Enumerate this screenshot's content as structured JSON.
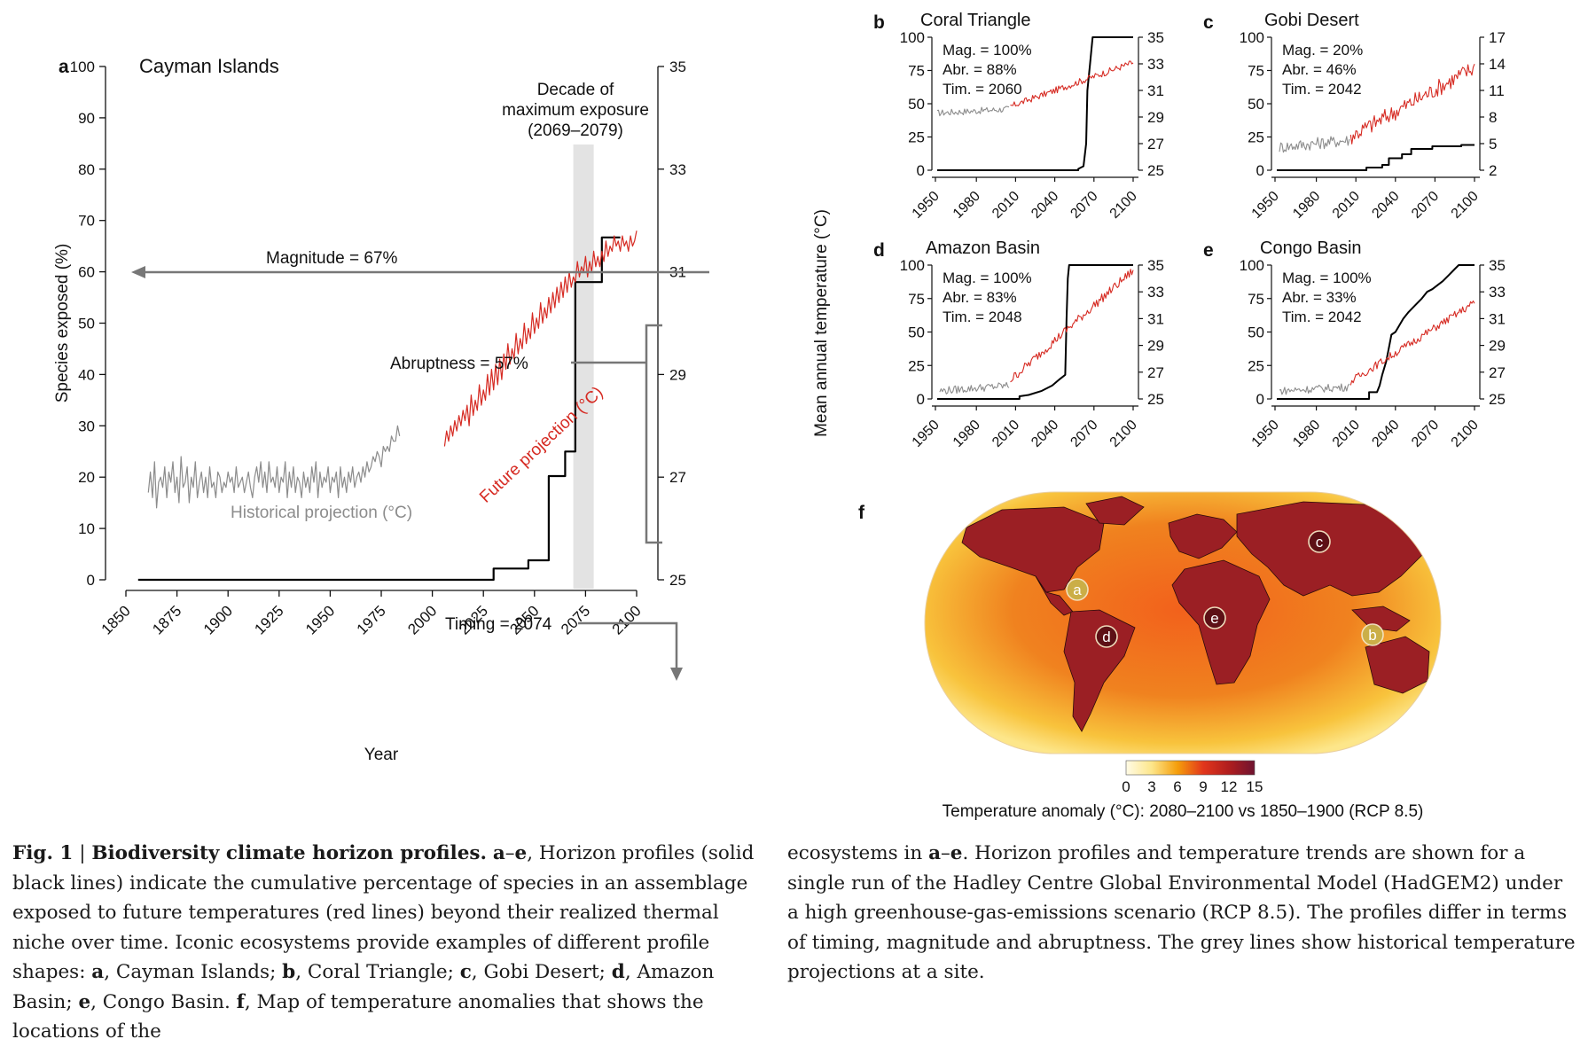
{
  "chart_data": [
    {
      "panel": "a",
      "type": "line",
      "title": "Cayman Islands",
      "xlabel": "Year",
      "ylabel_left": "Species exposed (%)",
      "ylabel_right": "Mean annual temperature (°C)",
      "xlim": [
        1850,
        2100
      ],
      "ylim_left": [
        0,
        100
      ],
      "ylim_right": [
        25,
        35
      ],
      "xticks": [
        1850,
        1875,
        1900,
        1925,
        1950,
        1975,
        2000,
        2025,
        2050,
        2075,
        2100
      ],
      "yticks_left": [
        0,
        10,
        20,
        30,
        40,
        50,
        60,
        70,
        80,
        90,
        100
      ],
      "yticks_right": [
        25,
        27,
        29,
        31,
        33,
        35
      ],
      "highlight": {
        "label_lines": [
          "Decade of",
          "maximum exposure",
          "(2069–2079)"
        ],
        "x_range": [
          2069,
          2079
        ]
      },
      "annotations": {
        "magnitude": "Magnitude = 67%",
        "abruptness": "Abruptness = 57%",
        "timing": "Timing = 2074",
        "historical": "Historical projection (°C)",
        "future": "Future projection (°C)"
      },
      "series": [
        {
          "name": "Species exposed (%)",
          "color": "#000000",
          "axis": "left",
          "points": [
            [
              1856,
              0
            ],
            [
              2030,
              0
            ],
            [
              2030,
              2.2
            ],
            [
              2047,
              2.2
            ],
            [
              2047,
              3.8
            ],
            [
              2057,
              3.8
            ],
            [
              2057,
              20.2
            ],
            [
              2065,
              20.2
            ],
            [
              2065,
              25
            ],
            [
              2070,
              25
            ],
            [
              2070,
              58
            ],
            [
              2083,
              58
            ],
            [
              2083,
              66.7
            ],
            [
              2092,
              66.7
            ]
          ]
        },
        {
          "name": "Historical projection (°C)",
          "color": "#8c8c8c",
          "axis": "right",
          "start": 1861,
          "values": [
            26.7,
            27.1,
            26.6,
            27.3,
            26.4,
            26.9,
            27.0,
            26.8,
            27.2,
            26.6,
            27.1,
            26.9,
            27.3,
            26.7,
            27.0,
            26.5,
            27.4,
            26.8,
            26.9,
            27.2,
            26.5,
            27.0,
            26.8,
            27.3,
            26.6,
            26.9,
            27.1,
            26.7,
            27.0,
            26.6,
            27.2,
            26.8,
            26.9,
            26.6,
            27.1,
            27.0,
            26.7,
            26.9,
            26.8,
            27.1,
            26.9,
            27.0,
            26.7,
            27.2,
            26.8,
            26.9,
            27.0,
            26.7,
            26.9,
            27.1,
            26.8,
            26.6,
            27.0,
            27.2,
            26.9,
            27.3,
            26.8,
            27.1,
            26.7,
            27.3,
            26.9,
            27.0,
            26.8,
            27.2,
            26.7,
            27.0,
            26.9,
            27.3,
            26.6,
            27.1,
            26.8,
            27.2,
            26.7,
            27.0,
            26.9,
            26.6,
            27.1,
            26.8,
            27.0,
            26.7,
            27.2,
            26.9,
            27.3,
            26.6,
            27.1,
            26.8,
            27.0,
            26.9,
            27.2,
            26.7,
            27.0,
            26.9,
            27.1,
            26.6,
            27.2,
            26.8,
            27.0,
            26.7,
            27.1,
            26.9,
            27.2,
            26.8,
            27.0,
            27.1,
            26.9,
            27.2,
            27.0,
            27.3,
            27.1,
            27.2,
            27.4,
            27.3,
            27.5,
            27.4,
            27.2,
            27.6,
            27.5,
            27.6,
            27.5,
            27.8,
            27.7,
            27.7,
            28.0,
            27.8
          ]
        },
        {
          "name": "Future projection (°C)",
          "color": "#d62b23",
          "axis": "right",
          "start": 2006,
          "values": [
            27.6,
            27.9,
            27.7,
            28.0,
            27.8,
            28.1,
            27.9,
            28.2,
            28.0,
            28.3,
            28.1,
            28.4,
            28.0,
            28.6,
            28.2,
            28.5,
            28.3,
            28.8,
            28.4,
            28.7,
            28.5,
            29.0,
            28.6,
            29.1,
            28.7,
            29.2,
            28.8,
            29.3,
            28.9,
            29.4,
            29.1,
            29.6,
            29.2,
            29.5,
            29.3,
            29.8,
            29.4,
            29.7,
            29.5,
            30.0,
            29.6,
            29.9,
            29.7,
            30.2,
            29.8,
            30.1,
            29.9,
            30.4,
            30.0,
            30.3,
            30.1,
            30.5,
            30.2,
            30.6,
            30.3,
            30.7,
            30.4,
            30.8,
            30.5,
            30.9,
            30.6,
            31.0,
            30.7,
            30.9,
            30.8,
            31.2,
            30.9,
            31.1,
            31.0,
            31.3,
            30.9,
            31.2,
            31.0,
            31.4,
            31.1,
            31.3,
            31.1,
            31.4,
            31.2,
            31.6,
            31.3,
            31.5,
            31.4,
            31.7,
            31.5,
            31.6,
            31.4,
            31.7,
            31.5,
            31.6,
            31.4,
            31.7,
            31.5,
            31.6,
            31.8
          ]
        }
      ]
    },
    {
      "panel": "b",
      "type": "line",
      "title": "Coral Triangle",
      "xticks": [
        1950,
        1980,
        2010,
        2040,
        2070,
        2100
      ],
      "yticks_left": [
        0,
        25,
        50,
        75,
        100
      ],
      "yticks_right": [
        25,
        27,
        29,
        31,
        33,
        35
      ],
      "ylim_right": [
        25,
        35
      ],
      "stats": [
        "Mag. = 100%",
        "Abr. = 88%",
        "Tim. = 2060"
      ],
      "series": [
        {
          "name": "Species exposed (%)",
          "color": "#000000",
          "points": [
            [
              1950,
              0
            ],
            [
              2058,
              0
            ],
            [
              2058,
              1
            ],
            [
              2062,
              3
            ],
            [
              2064,
              20
            ],
            [
              2065,
              60
            ],
            [
              2067,
              80
            ],
            [
              2069,
              100
            ],
            [
              2100,
              100
            ]
          ]
        },
        {
          "name": "Historical projection (°C)",
          "color": "#8c8c8c",
          "start": 1950,
          "end": 2005,
          "trend": [
            29.3,
            29.6
          ],
          "noise": 0.25
        },
        {
          "name": "Future projection (°C)",
          "color": "#d62b23",
          "start": 2006,
          "end": 2100,
          "trend": [
            29.8,
            33.1
          ],
          "noise": 0.25
        }
      ]
    },
    {
      "panel": "c",
      "type": "line",
      "title": "Gobi Desert",
      "xticks": [
        1950,
        1980,
        2010,
        2040,
        2070,
        2100
      ],
      "yticks_left": [
        0,
        25,
        50,
        75,
        100
      ],
      "yticks_right": [
        2,
        5,
        8,
        11,
        14,
        17
      ],
      "ylim_right": [
        2,
        17
      ],
      "stats": [
        "Mag. = 20%",
        "Abr. = 46%",
        "Tim. = 2042"
      ],
      "series": [
        {
          "name": "Species exposed (%)",
          "color": "#000000",
          "points": [
            [
              1950,
              0
            ],
            [
              2018,
              0
            ],
            [
              2018,
              2
            ],
            [
              2030,
              2
            ],
            [
              2030,
              4
            ],
            [
              2035,
              4
            ],
            [
              2035,
              9
            ],
            [
              2045,
              9
            ],
            [
              2045,
              12
            ],
            [
              2052,
              12
            ],
            [
              2052,
              16
            ],
            [
              2068,
              16
            ],
            [
              2068,
              18
            ],
            [
              2090,
              18
            ],
            [
              2090,
              19
            ],
            [
              2100,
              19
            ]
          ]
        },
        {
          "name": "Historical projection (°C)",
          "color": "#8c8c8c",
          "start": 1952,
          "end": 2005,
          "trend": [
            4.6,
            5.4
          ],
          "noise": 0.7
        },
        {
          "name": "Future projection (°C)",
          "color": "#d62b23",
          "start": 2006,
          "end": 2100,
          "trend": [
            5.8,
            13.6
          ],
          "noise": 1.0
        }
      ]
    },
    {
      "panel": "d",
      "type": "line",
      "title": "Amazon Basin",
      "xticks": [
        1950,
        1980,
        2010,
        2040,
        2070,
        2100
      ],
      "yticks_left": [
        0,
        25,
        50,
        75,
        100
      ],
      "yticks_right": [
        25,
        27,
        29,
        31,
        33,
        35
      ],
      "ylim_right": [
        25,
        35
      ],
      "stats": [
        "Mag. = 100%",
        "Abr. = 83%",
        "Tim. = 2048"
      ],
      "series": [
        {
          "name": "Species exposed (%)",
          "color": "#000000",
          "points": [
            [
              1950,
              0
            ],
            [
              2013,
              0
            ],
            [
              2013,
              2
            ],
            [
              2020,
              3
            ],
            [
              2030,
              6
            ],
            [
              2038,
              10
            ],
            [
              2044,
              15
            ],
            [
              2048,
              18
            ],
            [
              2049,
              60
            ],
            [
              2050,
              90
            ],
            [
              2051,
              100
            ],
            [
              2100,
              100
            ]
          ]
        },
        {
          "name": "Historical projection (°C)",
          "color": "#8c8c8c",
          "start": 1952,
          "end": 2005,
          "trend": [
            25.6,
            26.0
          ],
          "noise": 0.3
        },
        {
          "name": "Future projection (°C)",
          "color": "#d62b23",
          "start": 2006,
          "end": 2100,
          "trend": [
            26.4,
            34.6
          ],
          "noise": 0.35
        }
      ]
    },
    {
      "panel": "e",
      "type": "line",
      "title": "Congo Basin",
      "xticks": [
        1950,
        1980,
        2010,
        2040,
        2070,
        2100
      ],
      "yticks_left": [
        0,
        25,
        50,
        75,
        100
      ],
      "yticks_right": [
        25,
        27,
        29,
        31,
        33,
        35
      ],
      "ylim_right": [
        25,
        35
      ],
      "stats": [
        "Mag. = 100%",
        "Abr. = 33%",
        "Tim. = 2042"
      ],
      "series": [
        {
          "name": "Species exposed (%)",
          "color": "#000000",
          "points": [
            [
              1950,
              0
            ],
            [
              2020,
              0
            ],
            [
              2020,
              5
            ],
            [
              2026,
              5
            ],
            [
              2028,
              10
            ],
            [
              2030,
              18
            ],
            [
              2033,
              28
            ],
            [
              2035,
              38
            ],
            [
              2037,
              48
            ],
            [
              2040,
              50
            ],
            [
              2043,
              55
            ],
            [
              2046,
              60
            ],
            [
              2050,
              65
            ],
            [
              2055,
              70
            ],
            [
              2060,
              75
            ],
            [
              2064,
              80
            ],
            [
              2068,
              82
            ],
            [
              2072,
              85
            ],
            [
              2076,
              88
            ],
            [
              2080,
              92
            ],
            [
              2085,
              97
            ],
            [
              2088,
              100
            ],
            [
              2100,
              100
            ]
          ]
        },
        {
          "name": "Historical projection (°C)",
          "color": "#8c8c8c",
          "start": 1952,
          "end": 2005,
          "trend": [
            25.6,
            25.9
          ],
          "noise": 0.3
        },
        {
          "name": "Future projection (°C)",
          "color": "#d62b23",
          "start": 2006,
          "end": 2100,
          "trend": [
            26.3,
            32.2
          ],
          "noise": 0.3
        }
      ]
    },
    {
      "panel": "f",
      "type": "map",
      "colorbar": {
        "label": "Temperature anomaly (°C): 2080–2100 vs 1850–1900 (RCP 8.5)",
        "ticks": [
          0,
          3,
          6,
          9,
          12,
          15
        ],
        "colors": [
          "#fffbe6",
          "#fde68a",
          "#f59e0b",
          "#e2361c",
          "#b01e1e",
          "#6e1330"
        ]
      },
      "markers": [
        "a",
        "b",
        "c",
        "d",
        "e"
      ]
    }
  ],
  "caption": {
    "fig": "Fig. 1",
    "sep": " | ",
    "title": "Biodiversity climate horizon profiles.",
    "parts": [
      {
        "b": "a",
        "t": "–"
      },
      {
        "b": "e",
        "t": ", Horizon profiles (solid black lines) indicate the cumulative percentage of species in an assemblage exposed to future temperatures (red lines) beyond their realized thermal niche over time. Iconic ecosystems provide examples of different profile shapes: "
      },
      {
        "b": "a",
        "t": ", Cayman Islands; "
      },
      {
        "b": "b",
        "t": ", Coral Triangle; "
      },
      {
        "b": "c",
        "t": ", Gobi Desert; "
      },
      {
        "b": "d",
        "t": ", Amazon Basin; "
      },
      {
        "b": "e",
        "t": ", Congo Basin. "
      },
      {
        "b": "f",
        "t": ", Map of temperature anomalies that shows the locations of the"
      }
    ],
    "right_parts": [
      {
        "b": "",
        "t": "ecosystems in "
      },
      {
        "b": "a",
        "t": "–"
      },
      {
        "b": "e",
        "t": ". Horizon profiles and temperature trends are shown for a single run of the Hadley Centre Global Environmental Model (HadGEM2) under a high greenhouse-gas-emissions scenario (RCP 8.5). The profiles differ in terms of timing, magnitude and abruptness. The grey lines show historical temperature projections at a site."
      }
    ]
  }
}
